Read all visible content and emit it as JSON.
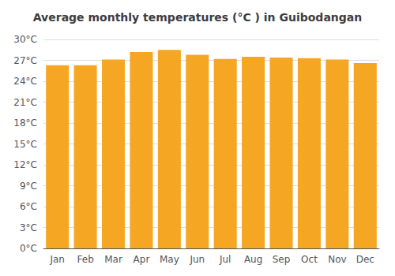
{
  "chart_data": {
    "type": "bar",
    "title": "Average monthly temperatures (°C ) in Guibodangan",
    "categories": [
      "Jan",
      "Feb",
      "Mar",
      "Apr",
      "May",
      "Jun",
      "Jul",
      "Aug",
      "Sep",
      "Oct",
      "Nov",
      "Dec"
    ],
    "values": [
      26.3,
      26.3,
      27.1,
      28.2,
      28.5,
      27.8,
      27.2,
      27.5,
      27.4,
      27.3,
      27.1,
      26.6
    ],
    "color": "#F5A623",
    "ylim": [
      0,
      30
    ],
    "yticks": [
      {
        "value": 0,
        "label": "0°C"
      },
      {
        "value": 3,
        "label": "3°C"
      },
      {
        "value": 6,
        "label": "6°C"
      },
      {
        "value": 9,
        "label": "9°C"
      },
      {
        "value": 12,
        "label": "12°C"
      },
      {
        "value": 15,
        "label": "15°C"
      },
      {
        "value": 18,
        "label": "18°C"
      },
      {
        "value": 21,
        "label": "21°C"
      },
      {
        "value": 24,
        "label": "24°C"
      },
      {
        "value": 27,
        "label": "27°C"
      },
      {
        "value": 30,
        "label": "30°C"
      }
    ],
    "grid": true
  }
}
